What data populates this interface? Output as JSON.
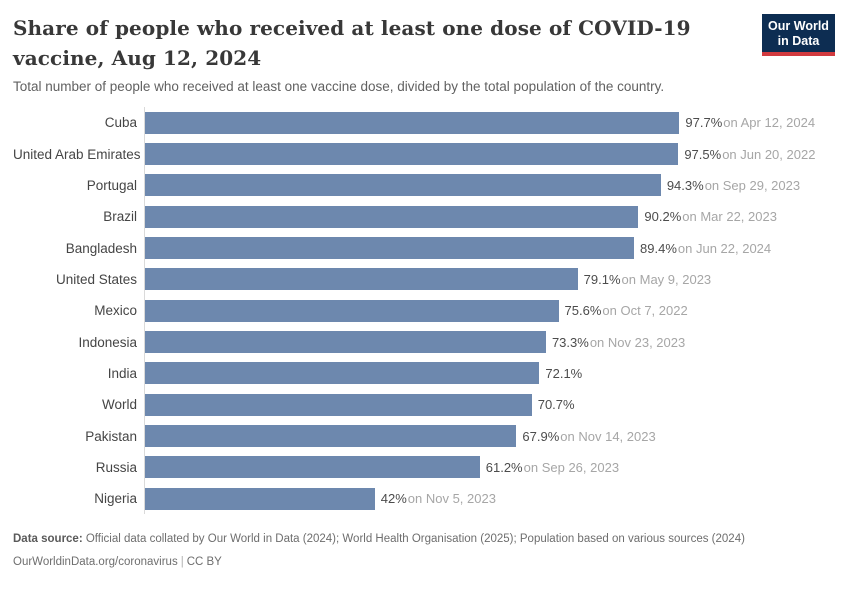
{
  "header": {
    "title": "Share of people who received at least one dose of COVID-19 vaccine, Aug 12, 2024",
    "subtitle": "Total number of people who received at least one vaccine dose, divided by the total population of the country.",
    "logo": {
      "line1": "Our World",
      "line2": "in Data"
    }
  },
  "chart_data": {
    "type": "bar",
    "orientation": "horizontal",
    "title": "Share of people who received at least one dose of COVID-19 vaccine, Aug 12, 2024",
    "xlabel": "",
    "ylabel": "",
    "xlim": [
      0,
      100
    ],
    "unit": "%",
    "grid": false,
    "bar_color": "#6d88ae",
    "axis_line_color": "#dadada",
    "categories": [
      "Cuba",
      "United Arab Emirates",
      "Portugal",
      "Brazil",
      "Bangladesh",
      "United States",
      "Mexico",
      "Indonesia",
      "India",
      "World",
      "Pakistan",
      "Russia",
      "Nigeria"
    ],
    "values": [
      97.7,
      97.5,
      94.3,
      90.2,
      89.4,
      79.1,
      75.6,
      73.3,
      72.1,
      70.7,
      67.9,
      61.2,
      42
    ],
    "value_labels": [
      "97.7%",
      "97.5%",
      "94.3%",
      "90.2%",
      "89.4%",
      "79.1%",
      "75.6%",
      "73.3%",
      "72.1%",
      "70.7%",
      "67.9%",
      "61.2%",
      "42%"
    ],
    "date_labels": [
      "on Apr 12, 2024",
      "on Jun 20, 2022",
      "on Sep 29, 2023",
      "on Mar 22, 2023",
      "on Jun 22, 2024",
      "on May 9, 2023",
      "on Oct 7, 2022",
      "on Nov 23, 2023",
      "",
      "",
      "on Nov 14, 2023",
      "on Sep 26, 2023",
      "on Nov 5, 2023"
    ]
  },
  "footer": {
    "source_label": "Data source:",
    "source_text": " Official data collated by Our World in Data (2024); World Health Organisation (2025); Population based on various sources (2024)",
    "link": "OurWorldinData.org/coronavirus",
    "separator": "|",
    "license": "CC BY"
  }
}
